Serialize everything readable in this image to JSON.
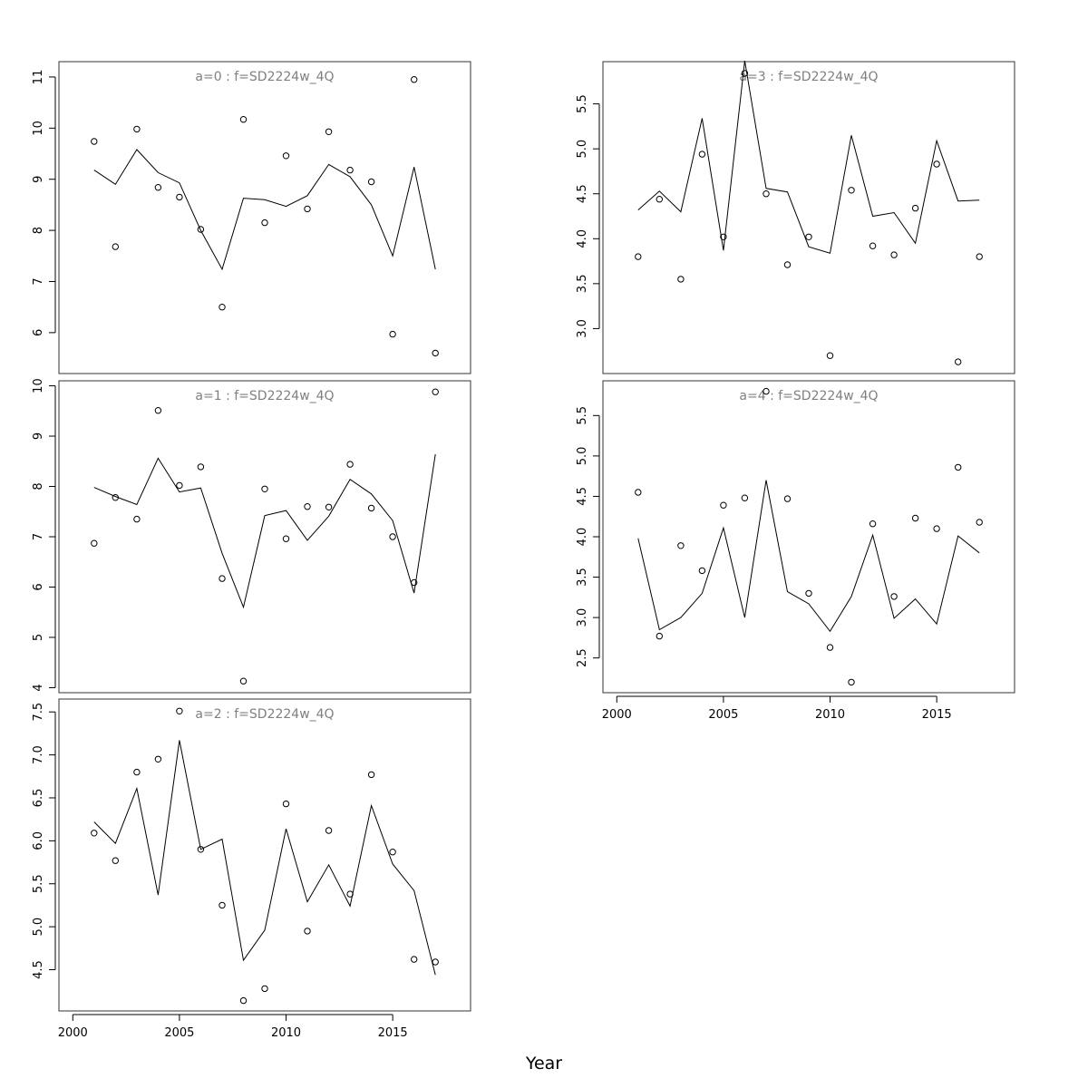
{
  "chart_data": {
    "xlabel": "Year",
    "x_axis": {
      "range": [
        1999.35,
        2018.65
      ],
      "ticks": [
        2000,
        2005,
        2010,
        2015
      ]
    },
    "colors": {
      "title": "#7f7f7f",
      "line": "#000000",
      "points": "#000000",
      "frame": "#333333"
    },
    "panels": [
      {
        "id": "a0",
        "type": "line+scatter",
        "title": "a=0 : f=SD2224w_4Q",
        "ylim": [
          5.2,
          11.3
        ],
        "yticks": [
          "6",
          "7",
          "8",
          "9",
          "10",
          "11"
        ],
        "show_x_axis": false,
        "x": [
          2001,
          2002,
          2003,
          2004,
          2005,
          2006,
          2007,
          2008,
          2009,
          2010,
          2011,
          2012,
          2013,
          2014,
          2015,
          2016,
          2017
        ],
        "fitted": [
          9.18,
          8.9,
          9.58,
          9.13,
          8.93,
          8.0,
          7.24,
          8.63,
          8.6,
          8.47,
          8.68,
          9.29,
          9.05,
          8.5,
          7.5,
          9.24,
          7.24
        ],
        "observed": [
          9.74,
          7.68,
          9.98,
          8.84,
          8.65,
          8.02,
          6.5,
          10.17,
          8.15,
          9.46,
          8.42,
          9.93,
          9.18,
          8.95,
          5.97,
          10.95,
          5.6
        ]
      },
      {
        "id": "a1",
        "type": "line+scatter",
        "title": "a=1 : f=SD2224w_4Q",
        "ylim": [
          3.9,
          10.1
        ],
        "yticks": [
          "4",
          "5",
          "6",
          "7",
          "8",
          "9",
          "10"
        ],
        "show_x_axis": false,
        "x": [
          2001,
          2002,
          2003,
          2004,
          2005,
          2006,
          2007,
          2008,
          2009,
          2010,
          2011,
          2012,
          2013,
          2014,
          2015,
          2016,
          2017
        ],
        "fitted": [
          7.98,
          7.8,
          7.64,
          8.56,
          7.89,
          7.97,
          6.67,
          5.6,
          7.42,
          7.52,
          6.93,
          7.41,
          8.14,
          7.85,
          7.32,
          5.88,
          8.64
        ],
        "observed": [
          6.87,
          7.78,
          7.35,
          9.51,
          8.02,
          8.39,
          6.17,
          4.13,
          7.95,
          6.96,
          7.6,
          7.59,
          8.44,
          7.57,
          7.0,
          6.09,
          9.88
        ]
      },
      {
        "id": "a2",
        "type": "line+scatter",
        "title": "a=2 : f=SD2224w_4Q",
        "ylim": [
          4.02,
          7.65
        ],
        "yticks": [
          "4.5",
          "5.0",
          "5.5",
          "6.0",
          "6.5",
          "7.0",
          "7.5"
        ],
        "show_x_axis": true,
        "x": [
          2001,
          2002,
          2003,
          2004,
          2005,
          2006,
          2007,
          2008,
          2009,
          2010,
          2011,
          2012,
          2013,
          2014,
          2015,
          2016,
          2017
        ],
        "fitted": [
          6.22,
          5.97,
          6.61,
          5.37,
          7.17,
          5.9,
          6.02,
          4.61,
          4.96,
          6.14,
          5.29,
          5.72,
          5.24,
          6.41,
          5.73,
          5.42,
          4.44
        ],
        "observed": [
          6.09,
          5.77,
          6.8,
          6.95,
          7.51,
          5.9,
          5.25,
          4.14,
          4.28,
          6.43,
          4.95,
          6.12,
          5.38,
          6.77,
          5.87,
          4.62,
          4.59
        ]
      },
      {
        "id": "a3",
        "type": "line+scatter",
        "title": "a=3 : f=SD2224w_4Q",
        "ylim": [
          2.5,
          5.97
        ],
        "yticks": [
          "3.0",
          "3.5",
          "4.0",
          "4.5",
          "5.0",
          "5.5"
        ],
        "show_x_axis": false,
        "x": [
          2001,
          2002,
          2003,
          2004,
          2005,
          2006,
          2007,
          2008,
          2009,
          2010,
          2011,
          2012,
          2013,
          2014,
          2015,
          2016,
          2017
        ],
        "fitted": [
          4.32,
          4.53,
          4.3,
          5.34,
          3.87,
          5.98,
          4.56,
          4.52,
          3.91,
          3.84,
          5.15,
          4.25,
          4.29,
          3.95,
          5.09,
          4.42,
          4.43
        ],
        "observed": [
          3.8,
          4.44,
          3.55,
          4.94,
          4.02,
          5.84,
          4.5,
          3.71,
          4.02,
          2.7,
          4.54,
          3.92,
          3.82,
          4.34,
          4.83,
          2.63,
          3.8
        ]
      },
      {
        "id": "a4",
        "type": "line+scatter",
        "title": "a=4 : f=SD2224w_4Q",
        "ylim": [
          2.07,
          5.93
        ],
        "yticks": [
          "2.5",
          "3.0",
          "3.5",
          "4.0",
          "4.5",
          "5.0",
          "5.5"
        ],
        "show_x_axis": true,
        "x": [
          2001,
          2002,
          2003,
          2004,
          2005,
          2006,
          2007,
          2008,
          2009,
          2010,
          2011,
          2012,
          2013,
          2014,
          2015,
          2016,
          2017
        ],
        "fitted": [
          3.98,
          2.85,
          3.0,
          3.3,
          4.11,
          3.0,
          4.7,
          3.32,
          3.17,
          2.83,
          3.26,
          4.02,
          2.99,
          3.23,
          2.92,
          4.01,
          3.8
        ],
        "observed": [
          4.55,
          2.77,
          3.89,
          3.58,
          4.39,
          4.48,
          5.8,
          4.47,
          3.3,
          2.63,
          2.2,
          4.16,
          3.26,
          4.23,
          4.1,
          4.86,
          4.18
        ]
      }
    ]
  }
}
